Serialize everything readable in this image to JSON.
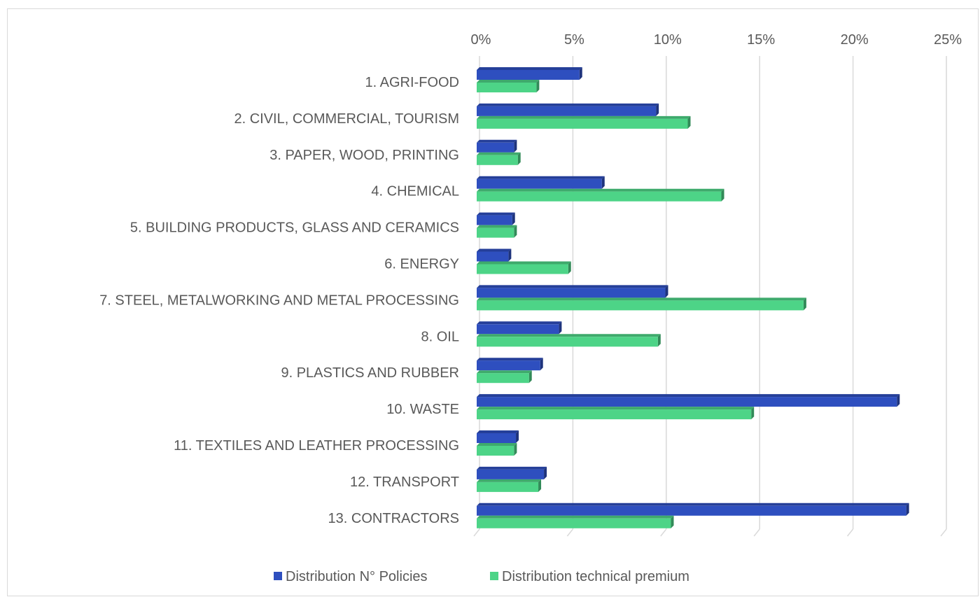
{
  "chart_data": {
    "type": "bar",
    "orientation": "horizontal",
    "title": "",
    "xlabel": "",
    "ylabel": "",
    "xlim": [
      0,
      25
    ],
    "x_ticks": [
      "0%",
      "5%",
      "10%",
      "15%",
      "20%",
      "25%"
    ],
    "x_tick_values": [
      0,
      5,
      10,
      15,
      20,
      25
    ],
    "grid": true,
    "legend_position": "bottom",
    "categories": [
      "1. AGRI-FOOD",
      "2. CIVIL, COMMERCIAL, TOURISM",
      "3. PAPER, WOOD, PRINTING",
      "4. CHEMICAL",
      "5. BUILDING PRODUCTS, GLASS AND CERAMICS",
      "6. ENERGY",
      "7. STEEL, METALWORKING AND METAL PROCESSING",
      "8. OIL",
      "9. PLASTICS AND RUBBER",
      "10. WASTE",
      "11. TEXTILES AND LEATHER PROCESSING",
      "12. TRANSPORT",
      "13. CONTRACTORS"
    ],
    "series": [
      {
        "name": "Distribution N° Policies",
        "color": "#2e4fbf",
        "values": [
          5.5,
          9.6,
          2.0,
          6.7,
          1.9,
          1.7,
          10.1,
          4.4,
          3.4,
          22.5,
          2.1,
          3.6,
          23.0
        ]
      },
      {
        "name": "Distribution technical premium",
        "color": "#4dd487",
        "values": [
          3.2,
          11.3,
          2.2,
          13.1,
          2.0,
          4.9,
          17.5,
          9.7,
          2.8,
          14.7,
          2.0,
          3.3,
          10.4
        ]
      }
    ]
  }
}
